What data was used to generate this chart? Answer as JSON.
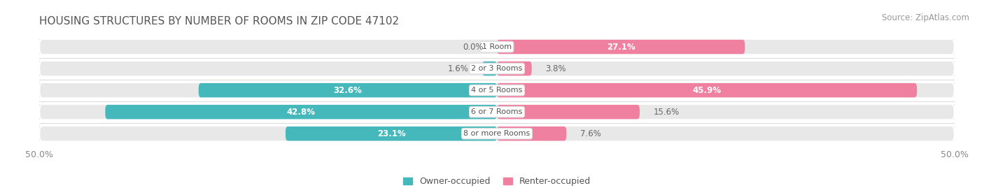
{
  "title": "HOUSING STRUCTURES BY NUMBER OF ROOMS IN ZIP CODE 47102",
  "source": "Source: ZipAtlas.com",
  "categories": [
    "1 Room",
    "2 or 3 Rooms",
    "4 or 5 Rooms",
    "6 or 7 Rooms",
    "8 or more Rooms"
  ],
  "owner_values": [
    0.0,
    1.6,
    32.6,
    42.8,
    23.1
  ],
  "renter_values": [
    27.1,
    3.8,
    45.9,
    15.6,
    7.6
  ],
  "owner_color": "#45B8BC",
  "renter_color": "#F080A0",
  "bar_bg_color": "#E8E8E8",
  "bar_height": 0.72,
  "xlim": [
    -50,
    50
  ],
  "title_fontsize": 11,
  "source_fontsize": 8.5,
  "label_fontsize": 8.5,
  "category_fontsize": 8,
  "legend_fontsize": 9,
  "title_color": "#555555",
  "source_color": "#999999",
  "label_dark_color": "#666666",
  "label_light_color": "#ffffff"
}
